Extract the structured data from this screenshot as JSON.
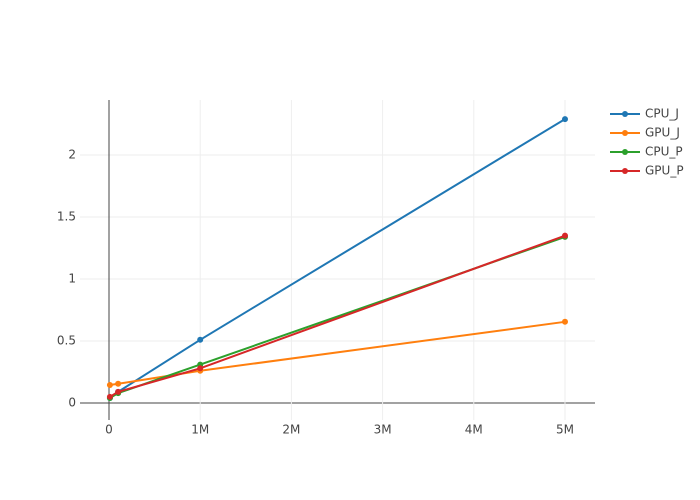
{
  "chart_data": {
    "type": "line",
    "x": [
      10000,
      100000,
      1000000,
      5000000
    ],
    "series": [
      {
        "name": "CPU_J",
        "color": "#1f77b4",
        "values": [
          0.04,
          0.09,
          0.51,
          2.29
        ]
      },
      {
        "name": "GPU_J",
        "color": "#ff7f0e",
        "values": [
          0.145,
          0.155,
          0.26,
          0.655
        ]
      },
      {
        "name": "CPU_P",
        "color": "#2ca02c",
        "values": [
          0.04,
          0.08,
          0.31,
          1.34
        ]
      },
      {
        "name": "GPU_P",
        "color": "#d62728",
        "values": [
          0.05,
          0.09,
          0.28,
          1.35
        ]
      }
    ],
    "xlim": [
      -318000,
      5329000
    ],
    "xticks": [
      0,
      {
        "value": 1000000,
        "label": "1M"
      },
      {
        "value": 2000000,
        "label": "2M"
      },
      {
        "value": 3000000,
        "label": "3M"
      },
      {
        "value": 4000000,
        "label": "4M"
      },
      {
        "value": 5000000,
        "label": "5M"
      }
    ],
    "ylim": [
      -0.137,
      2.444
    ],
    "yticks": [
      0,
      0.5,
      1,
      1.5,
      2
    ],
    "grid": true
  }
}
